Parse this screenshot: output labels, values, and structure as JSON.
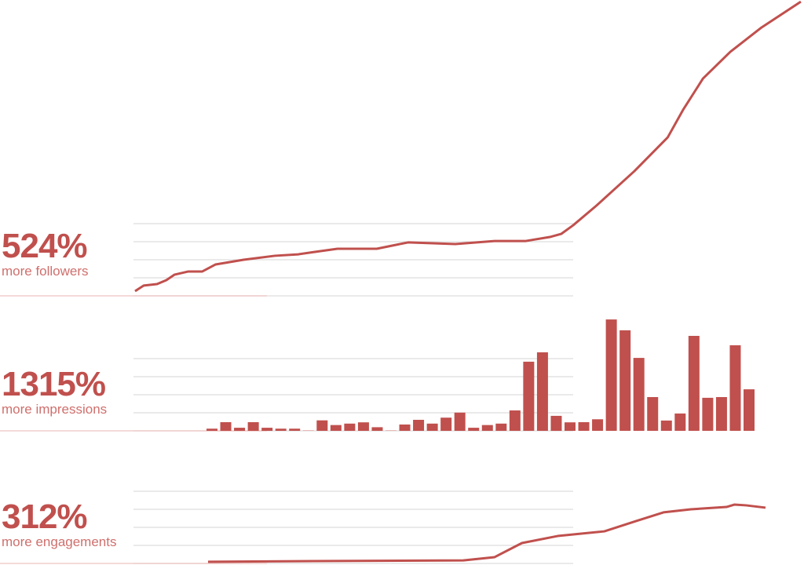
{
  "colors": {
    "accent": "#c0504d",
    "grid": "#dddddd",
    "accent_light": "#e8b4b2"
  },
  "stats": [
    {
      "value": "524%",
      "label": "more followers"
    },
    {
      "value": "1315%",
      "label": "more impressions"
    },
    {
      "value": "312%",
      "label": "more engagements"
    }
  ],
  "chart_data": [
    {
      "type": "line",
      "series_of": "followers",
      "grid": true,
      "x": [
        0,
        1.3,
        3.3,
        4.7,
        5.9,
        8.0,
        10.1,
        12.1,
        16.3,
        21.0,
        24.5,
        26.9,
        30.4,
        36.3,
        41.0,
        48.1,
        54.0,
        58.7,
        62.3,
        64.0,
        65.8,
        69.3,
        75.0,
        80.0,
        82.3,
        85.3,
        89.4,
        94.1,
        100
      ],
      "y": [
        0.26,
        0.57,
        0.65,
        0.87,
        1.17,
        1.35,
        1.35,
        1.74,
        2.0,
        2.22,
        2.3,
        2.43,
        2.61,
        2.61,
        2.96,
        2.87,
        3.04,
        3.04,
        3.26,
        3.43,
        3.91,
        5.0,
        6.91,
        8.78,
        10.3,
        12.04,
        13.52,
        14.87,
        16.3
      ],
      "xlim": [
        0,
        100
      ],
      "ylim": [
        0,
        16.3
      ]
    },
    {
      "type": "bar",
      "series_of": "impressions",
      "grid": true,
      "values": [
        0.12,
        0.48,
        0.17,
        0.48,
        0.17,
        0.12,
        0.12,
        0.04,
        0.58,
        0.32,
        0.4,
        0.47,
        0.2,
        0.04,
        0.35,
        0.61,
        0.4,
        0.73,
        1.01,
        0.17,
        0.32,
        0.4,
        1.13,
        3.83,
        4.35,
        0.83,
        0.47,
        0.48,
        0.64,
        6.17,
        5.57,
        4.04,
        1.87,
        0.57,
        0.96,
        5.26,
        1.83,
        1.87,
        4.74,
        2.3
      ],
      "ylim": [
        0,
        6.2
      ]
    },
    {
      "type": "line",
      "series_of": "engagements",
      "grid": true,
      "x": [
        0,
        19,
        45.8,
        51.4,
        56.3,
        62.7,
        71.1,
        76.8,
        81.7,
        86.6,
        93,
        94.4,
        96.5,
        100
      ],
      "y": [
        0.09,
        0.13,
        0.17,
        0.35,
        1.13,
        1.52,
        1.78,
        2.35,
        2.83,
        3.0,
        3.13,
        3.26,
        3.22,
        3.09
      ],
      "xlim": [
        0,
        100
      ],
      "ylim": [
        0,
        4
      ]
    }
  ]
}
